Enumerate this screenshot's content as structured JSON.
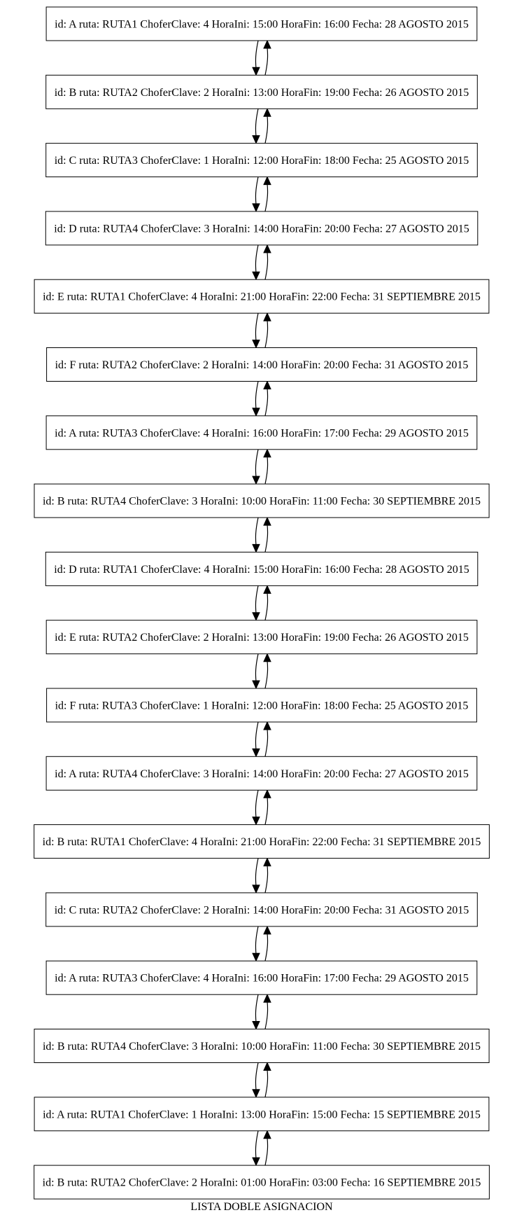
{
  "graph": {
    "caption": "LISTA DOBLE  ASIGNACION",
    "nodes": [
      {
        "label": "id: A ruta: RUTA1 ChoferClave: 4 HoraIni: 15:00 HoraFin: 16:00 Fecha: 28 AGOSTO 2015"
      },
      {
        "label": "id: B ruta: RUTA2 ChoferClave: 2 HoraIni: 13:00 HoraFin: 19:00 Fecha: 26 AGOSTO 2015"
      },
      {
        "label": "id: C ruta: RUTA3 ChoferClave: 1 HoraIni: 12:00 HoraFin: 18:00 Fecha: 25 AGOSTO 2015"
      },
      {
        "label": "id: D ruta: RUTA4 ChoferClave: 3 HoraIni: 14:00 HoraFin: 20:00 Fecha: 27 AGOSTO 2015"
      },
      {
        "label": "id: E ruta: RUTA1 ChoferClave: 4 HoraIni: 21:00 HoraFin: 22:00 Fecha: 31 SEPTIEMBRE 2015"
      },
      {
        "label": "id: F ruta: RUTA2 ChoferClave: 2 HoraIni: 14:00 HoraFin: 20:00 Fecha: 31 AGOSTO 2015"
      },
      {
        "label": "id: A ruta: RUTA3 ChoferClave: 4 HoraIni: 16:00 HoraFin: 17:00 Fecha: 29 AGOSTO 2015"
      },
      {
        "label": "id: B ruta: RUTA4 ChoferClave: 3 HoraIni: 10:00 HoraFin: 11:00 Fecha: 30 SEPTIEMBRE 2015"
      },
      {
        "label": "id: D ruta: RUTA1 ChoferClave: 4 HoraIni: 15:00 HoraFin: 16:00 Fecha: 28 AGOSTO 2015"
      },
      {
        "label": "id: E ruta: RUTA2 ChoferClave: 2 HoraIni: 13:00 HoraFin: 19:00 Fecha: 26 AGOSTO 2015"
      },
      {
        "label": "id: F ruta: RUTA3 ChoferClave: 1 HoraIni: 12:00 HoraFin: 18:00 Fecha: 25 AGOSTO 2015"
      },
      {
        "label": "id: A ruta: RUTA4 ChoferClave: 3 HoraIni: 14:00 HoraFin: 20:00 Fecha: 27 AGOSTO 2015"
      },
      {
        "label": "id: B ruta: RUTA1 ChoferClave: 4 HoraIni: 21:00 HoraFin: 22:00 Fecha: 31 SEPTIEMBRE 2015"
      },
      {
        "label": "id: C ruta: RUTA2 ChoferClave: 2 HoraIni: 14:00 HoraFin: 20:00 Fecha: 31 AGOSTO 2015"
      },
      {
        "label": "id: A ruta: RUTA3 ChoferClave: 4 HoraIni: 16:00 HoraFin: 17:00 Fecha: 29 AGOSTO 2015"
      },
      {
        "label": "id: B ruta: RUTA4 ChoferClave: 3 HoraIni: 10:00 HoraFin: 11:00 Fecha: 30 SEPTIEMBRE 2015"
      },
      {
        "label": "id: A ruta: RUTA1 ChoferClave: 1 HoraIni: 13:00 HoraFin: 15:00 Fecha: 15 SEPTIEMBRE 2015"
      },
      {
        "label": "id: B ruta: RUTA2 ChoferClave: 2 HoraIni: 01:00 HoraFin: 03:00 Fecha: 16 SEPTIEMBRE 2015"
      }
    ],
    "edges": "bidirectional (next / previous) between consecutive nodes"
  }
}
